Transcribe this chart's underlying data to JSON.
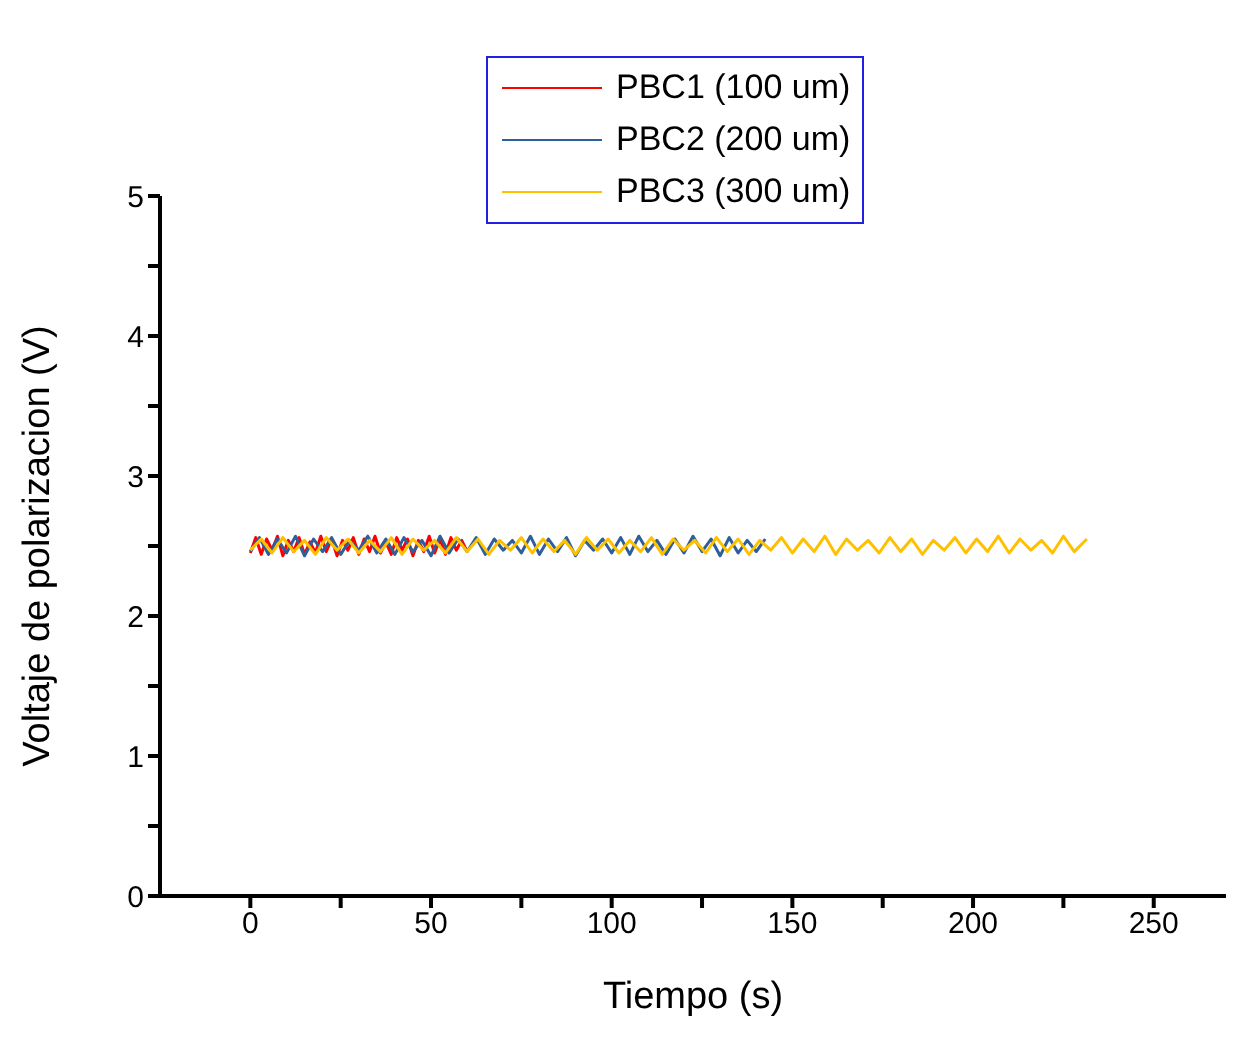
{
  "chart_data": {
    "type": "line",
    "xlabel": "Tiempo (s)",
    "ylabel": "Voltaje de polarizacion (V)",
    "xlim": [
      -25,
      270
    ],
    "ylim": [
      0,
      5
    ],
    "xticks": [
      0,
      {
        "value": 25,
        "label": null
      },
      50,
      {
        "value": 75,
        "label": null
      },
      100,
      {
        "value": 125,
        "label": null
      },
      150,
      {
        "value": 175,
        "label": null
      },
      200,
      {
        "value": 225,
        "label": null
      },
      250
    ],
    "yticks": [
      0,
      {
        "value": 0.5,
        "label": null
      },
      1,
      {
        "value": 1.5,
        "label": null
      },
      2,
      {
        "value": 2.5,
        "label": null
      },
      3,
      {
        "value": 3.5,
        "label": null
      },
      4,
      {
        "value": 4.5,
        "label": null
      },
      5
    ],
    "legend": "top",
    "grid": false,
    "line_style": "solid",
    "marker": "none",
    "series": [
      {
        "name": "PBC1 (100 um)",
        "color": "#ff0000",
        "x": [
          0,
          1.5,
          3,
          4.5,
          6,
          7.5,
          9,
          10.5,
          12,
          13.5,
          15,
          16.5,
          18,
          19.5,
          21,
          22.5,
          24,
          25.5,
          27,
          28.5,
          30,
          31.5,
          33,
          34.5,
          36,
          37.5,
          39,
          40.5,
          42,
          43.5,
          45,
          46.5,
          48,
          49.5,
          51,
          52.5,
          54,
          55.5,
          57,
          58.5,
          60
        ],
        "values": [
          2.45,
          2.56,
          2.44,
          2.55,
          2.47,
          2.57,
          2.43,
          2.54,
          2.46,
          2.56,
          2.44,
          2.53,
          2.45,
          2.57,
          2.46,
          2.55,
          2.43,
          2.54,
          2.47,
          2.56,
          2.44,
          2.55,
          2.46,
          2.57,
          2.45,
          2.53,
          2.44,
          2.56,
          2.47,
          2.55,
          2.43,
          2.54,
          2.46,
          2.57,
          2.45,
          2.55,
          2.44,
          2.56,
          2.47,
          2.54,
          2.46
        ]
      },
      {
        "name": "PBC2 (200 um)",
        "color": "#2e5f9a",
        "x": [
          0,
          2.5,
          5,
          7.5,
          10,
          12.5,
          15,
          17.5,
          20,
          22.5,
          25,
          27.5,
          30,
          32.5,
          35,
          37.5,
          40,
          42.5,
          45,
          47.5,
          50,
          52.5,
          55,
          57.5,
          60,
          62.5,
          65,
          67.5,
          70,
          72.5,
          75,
          77.5,
          80,
          82.5,
          85,
          87.5,
          90,
          92.5,
          95,
          97.5,
          100,
          102.5,
          105,
          107.5,
          110,
          112.5,
          115,
          117.5,
          120,
          122.5,
          125,
          127.5,
          130,
          132.5,
          135,
          137.5,
          140,
          142.5
        ],
        "values": [
          2.46,
          2.56,
          2.44,
          2.55,
          2.45,
          2.57,
          2.43,
          2.55,
          2.46,
          2.56,
          2.44,
          2.54,
          2.47,
          2.57,
          2.45,
          2.55,
          2.44,
          2.56,
          2.46,
          2.54,
          2.43,
          2.57,
          2.45,
          2.55,
          2.46,
          2.56,
          2.44,
          2.55,
          2.47,
          2.54,
          2.45,
          2.57,
          2.44,
          2.55,
          2.46,
          2.56,
          2.43,
          2.54,
          2.47,
          2.55,
          2.45,
          2.56,
          2.44,
          2.57,
          2.46,
          2.54,
          2.44,
          2.55,
          2.45,
          2.57,
          2.46,
          2.55,
          2.43,
          2.56,
          2.45,
          2.54,
          2.46,
          2.55
        ]
      },
      {
        "name": "PBC3 (300 um)",
        "color": "#ffc000",
        "x": [
          0,
          3,
          6,
          9,
          12,
          15,
          18,
          21,
          24,
          27,
          30,
          33,
          36,
          39,
          42,
          45,
          48,
          51,
          54,
          57,
          60,
          63,
          66,
          69,
          72,
          75,
          78,
          81,
          84,
          87,
          90,
          93,
          96,
          99,
          102,
          105,
          108,
          111,
          114,
          117,
          120,
          123,
          126,
          129,
          132,
          135,
          138,
          141,
          144,
          147,
          150,
          153,
          156,
          159,
          162,
          165,
          168,
          171,
          174,
          177,
          180,
          183,
          186,
          189,
          192,
          195,
          198,
          201,
          204,
          207,
          210,
          213,
          216,
          219,
          222,
          225,
          228,
          231.5
        ],
        "values": [
          2.47,
          2.55,
          2.45,
          2.56,
          2.46,
          2.54,
          2.44,
          2.56,
          2.47,
          2.55,
          2.45,
          2.54,
          2.46,
          2.56,
          2.44,
          2.55,
          2.47,
          2.54,
          2.45,
          2.56,
          2.46,
          2.55,
          2.44,
          2.54,
          2.47,
          2.56,
          2.45,
          2.55,
          2.46,
          2.54,
          2.44,
          2.56,
          2.47,
          2.55,
          2.45,
          2.54,
          2.46,
          2.56,
          2.44,
          2.55,
          2.47,
          2.54,
          2.45,
          2.56,
          2.46,
          2.55,
          2.44,
          2.54,
          2.47,
          2.56,
          2.45,
          2.55,
          2.46,
          2.57,
          2.44,
          2.55,
          2.47,
          2.54,
          2.45,
          2.56,
          2.46,
          2.55,
          2.44,
          2.54,
          2.47,
          2.56,
          2.45,
          2.55,
          2.46,
          2.57,
          2.45,
          2.55,
          2.47,
          2.54,
          2.45,
          2.57,
          2.46,
          2.55
        ]
      }
    ]
  }
}
